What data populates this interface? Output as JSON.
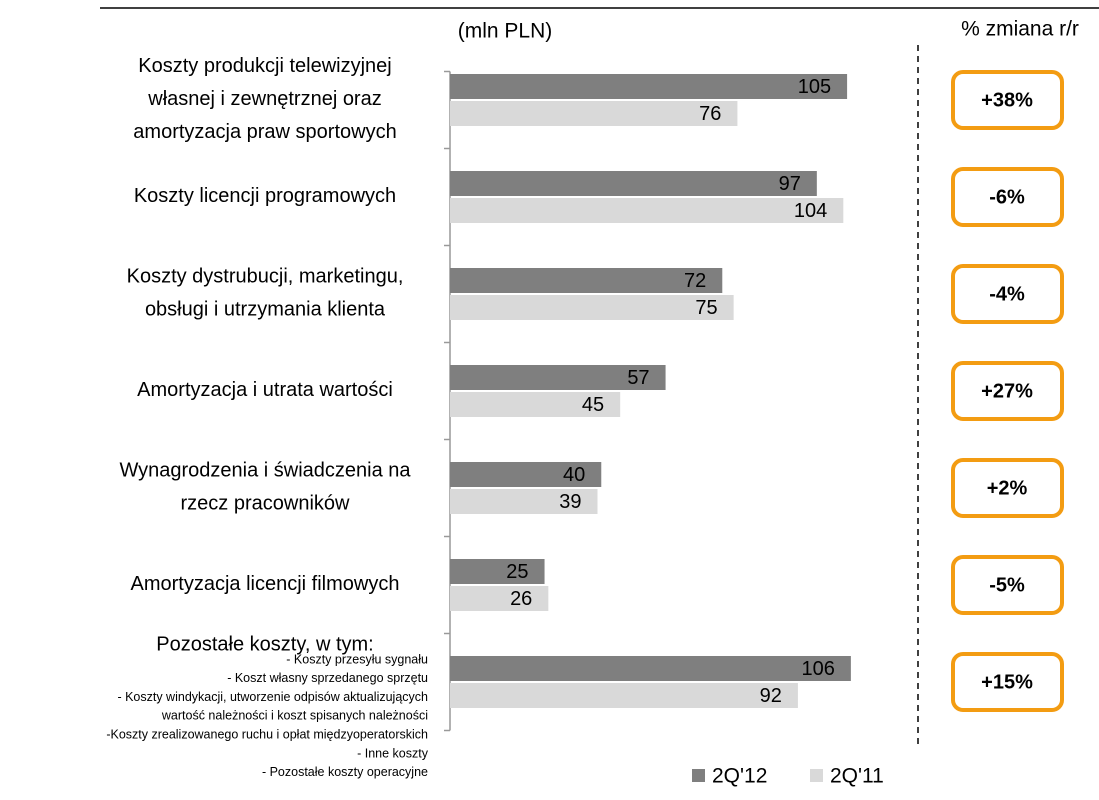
{
  "chart_data": {
    "type": "bar",
    "orientation": "horizontal",
    "unit_label": "(mln PLN)",
    "change_title": "% zmiana r/r",
    "categories": [
      "Koszty produkcji telewizyjnej\nwłasnej i zewnętrznej oraz\namortyzacja praw sportowych",
      "Koszty licencji programowych",
      "Koszty dystrubucji, marketingu,\nobsługi i utrzymania klienta",
      "Amortyzacja i utrata wartości",
      "Wynagrodzenia i świadczenia na\nrzecz pracowników",
      "Amortyzacja licencji filmowych",
      "Pozostałe koszty, w tym:"
    ],
    "category_notes": [
      "- Koszty przesyłu sygnału",
      "- Koszt własny sprzedanego sprzętu",
      "- Koszty windykacji, utworzenie odpisów aktualizujących",
      "wartość należności i koszt spisanych należności",
      "-Koszty zrealizowanego ruchu i opłat międzyoperatorskich",
      "- Inne koszty",
      "- Pozostałe koszty operacyjne"
    ],
    "series": [
      {
        "name": "2Q'12",
        "color": "#7f7f7f",
        "values": [
          105,
          97,
          72,
          57,
          40,
          25,
          106
        ]
      },
      {
        "name": "2Q'11",
        "color": "#d9d9d9",
        "values": [
          76,
          104,
          75,
          45,
          39,
          26,
          92
        ]
      }
    ],
    "change_labels": [
      "+38%",
      "-6%",
      "-4%",
      "+27%",
      "+2%",
      "-5%",
      "+15%"
    ],
    "change_color": "#f39c12",
    "xlim": [
      0,
      110
    ]
  }
}
